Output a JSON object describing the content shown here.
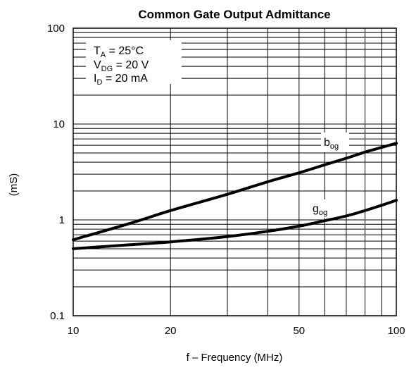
{
  "chart_data": {
    "type": "line",
    "title": "Common Gate Output Admittance",
    "xlabel": "f – Frequency (MHz)",
    "ylabel": "(mS)",
    "x_scale": "log",
    "y_scale": "log",
    "xlim": [
      10,
      100
    ],
    "ylim": [
      0.1,
      100
    ],
    "grid": true,
    "x_ticks": [
      {
        "value": 10,
        "label": "10"
      },
      {
        "value": 20,
        "label": "20"
      },
      {
        "value": 50,
        "label": "50"
      },
      {
        "value": 100,
        "label": "100"
      }
    ],
    "y_ticks": [
      {
        "value": 0.1,
        "label": "0.1"
      },
      {
        "value": 1,
        "label": "1"
      },
      {
        "value": 10,
        "label": "10"
      },
      {
        "value": 100,
        "label": "100"
      }
    ],
    "conditions": {
      "ta": {
        "main": "T",
        "sub": "A",
        "rest": " = 25°C"
      },
      "vdg": {
        "main": "V",
        "sub": "DG",
        "rest": " = 20 V"
      },
      "id": {
        "main": "I",
        "sub": "D",
        "rest": " = 20 mA"
      }
    },
    "series": [
      {
        "name": "b_og",
        "label_main": "b",
        "label_sub": "og",
        "x": [
          10,
          15,
          20,
          30,
          40,
          50,
          60,
          70,
          80,
          90,
          100
        ],
        "y": [
          0.62,
          0.92,
          1.25,
          1.85,
          2.5,
          3.1,
          3.75,
          4.4,
          5.1,
          5.7,
          6.3
        ]
      },
      {
        "name": "g_og",
        "label_main": "g",
        "label_sub": "og",
        "x": [
          10,
          15,
          20,
          30,
          40,
          50,
          60,
          70,
          80,
          90,
          100
        ],
        "y": [
          0.5,
          0.55,
          0.59,
          0.67,
          0.76,
          0.86,
          0.98,
          1.1,
          1.25,
          1.42,
          1.6
        ]
      }
    ]
  }
}
